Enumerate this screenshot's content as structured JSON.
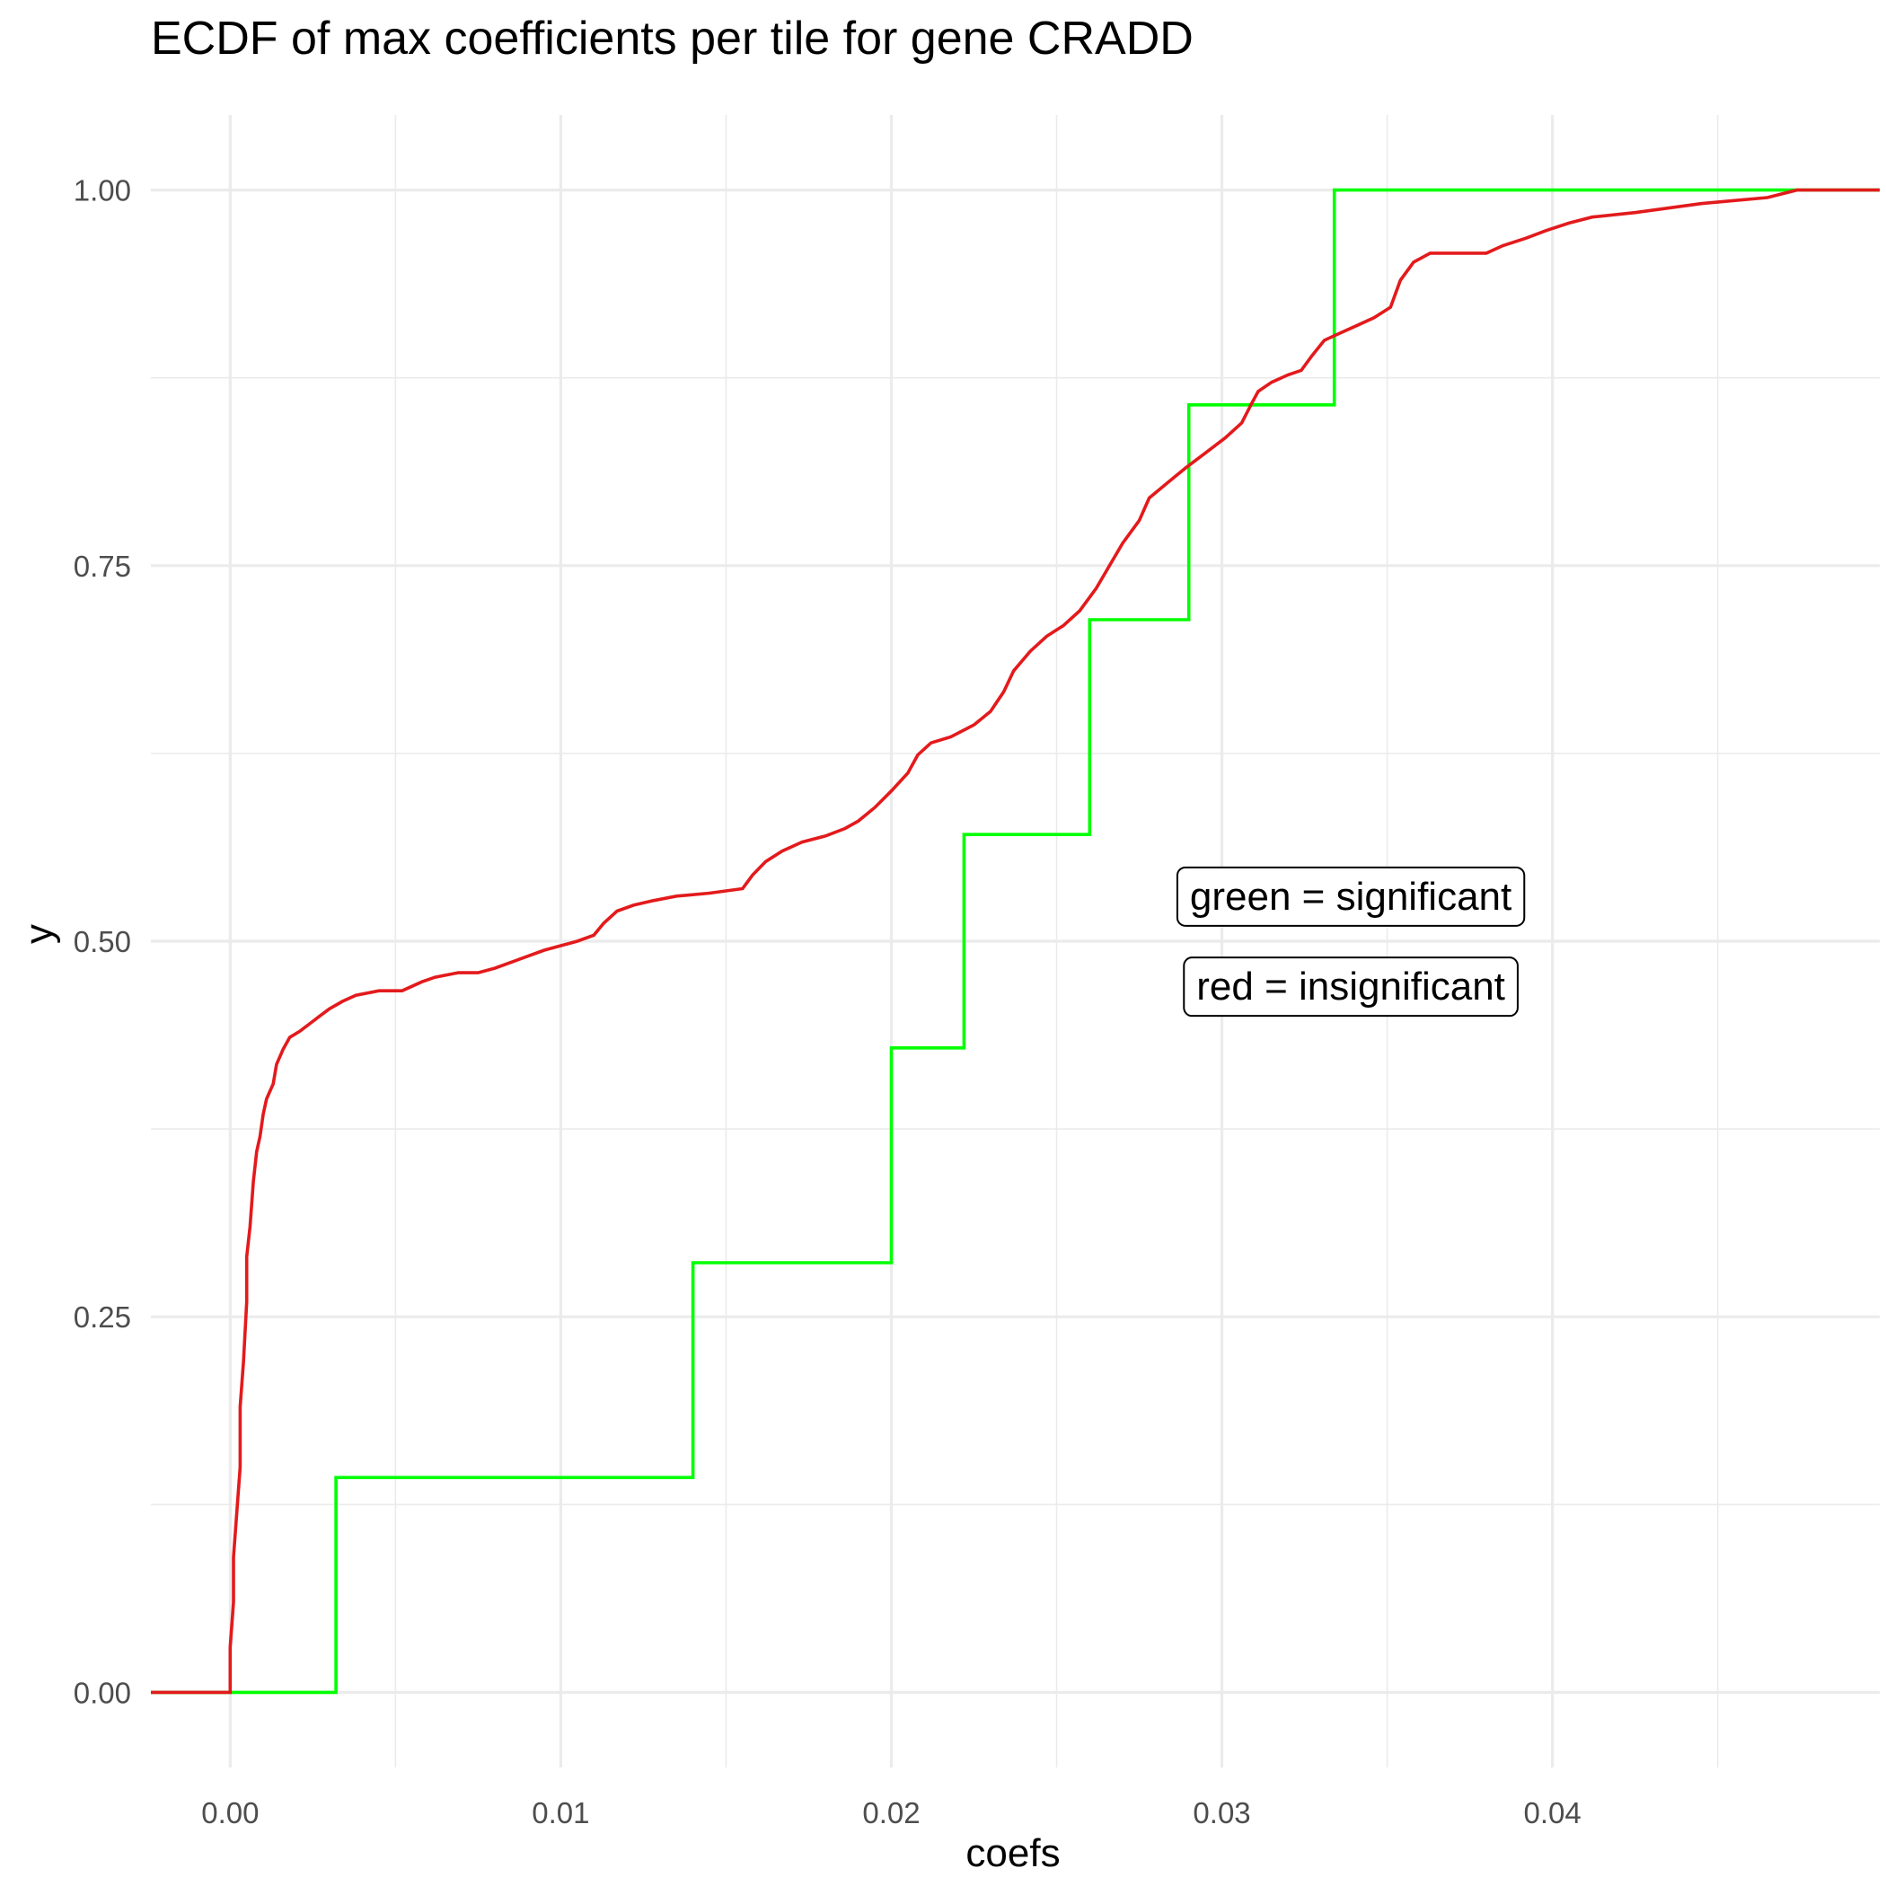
{
  "chart_data": {
    "type": "line",
    "subtype": "ecdf-step",
    "title": "ECDF of max coefficients per tile for gene CRADD",
    "xlabel": "coefs",
    "ylabel": "y",
    "xlim": [
      -0.0024,
      0.0499
    ],
    "ylim": [
      -0.05,
      1.05
    ],
    "x_ticks": [
      0.0,
      0.01,
      0.02,
      0.03,
      0.04
    ],
    "x_tick_labels": [
      "0.00",
      "0.01",
      "0.02",
      "0.03",
      "0.04"
    ],
    "y_ticks": [
      0.0,
      0.25,
      0.5,
      0.75,
      1.0
    ],
    "y_tick_labels": [
      "0.00",
      "0.25",
      "0.50",
      "0.75",
      "1.00"
    ],
    "grid": true,
    "annotations": [
      {
        "text": "green = significant",
        "x": 0.0339,
        "y": 0.53
      },
      {
        "text": "red = insignificant",
        "x": 0.0339,
        "y": 0.47
      }
    ],
    "series": [
      {
        "color": "#00ff00",
        "points": [
          [
            -0.0024,
            0.0
          ],
          [
            0.0032,
            0.0
          ],
          [
            0.0032,
            0.143
          ],
          [
            0.014,
            0.143
          ],
          [
            0.014,
            0.286
          ],
          [
            0.02,
            0.286
          ],
          [
            0.02,
            0.429
          ],
          [
            0.0222,
            0.429
          ],
          [
            0.0222,
            0.571
          ],
          [
            0.026,
            0.571
          ],
          [
            0.026,
            0.714
          ],
          [
            0.029,
            0.714
          ],
          [
            0.029,
            0.857
          ],
          [
            0.0334,
            0.857
          ],
          [
            0.0334,
            1.0
          ],
          [
            0.0499,
            1.0
          ]
        ]
      },
      {
        "color": "#e31a1c",
        "points": [
          [
            -0.0024,
            0.0
          ],
          [
            0.0,
            0.0
          ],
          [
            0.0,
            0.03
          ],
          [
            0.0001,
            0.06
          ],
          [
            0.0001,
            0.09
          ],
          [
            0.0002,
            0.12
          ],
          [
            0.0003,
            0.15
          ],
          [
            0.0003,
            0.19
          ],
          [
            0.0004,
            0.22
          ],
          [
            0.0005,
            0.26
          ],
          [
            0.0005,
            0.29
          ],
          [
            0.0006,
            0.31
          ],
          [
            0.0007,
            0.34
          ],
          [
            0.0008,
            0.36
          ],
          [
            0.0009,
            0.37
          ],
          [
            0.001,
            0.385
          ],
          [
            0.0011,
            0.395
          ],
          [
            0.0013,
            0.405
          ],
          [
            0.0014,
            0.418
          ],
          [
            0.0016,
            0.428
          ],
          [
            0.0018,
            0.436
          ],
          [
            0.0021,
            0.44
          ],
          [
            0.0024,
            0.445
          ],
          [
            0.0027,
            0.45
          ],
          [
            0.003,
            0.455
          ],
          [
            0.0034,
            0.46
          ],
          [
            0.0038,
            0.464
          ],
          [
            0.0045,
            0.467
          ],
          [
            0.0052,
            0.467
          ],
          [
            0.0055,
            0.47
          ],
          [
            0.0058,
            0.473
          ],
          [
            0.0062,
            0.476
          ],
          [
            0.0069,
            0.479
          ],
          [
            0.0075,
            0.479
          ],
          [
            0.008,
            0.482
          ],
          [
            0.0085,
            0.486
          ],
          [
            0.009,
            0.49
          ],
          [
            0.0095,
            0.494
          ],
          [
            0.01,
            0.497
          ],
          [
            0.0105,
            0.5
          ],
          [
            0.011,
            0.504
          ],
          [
            0.0113,
            0.512
          ],
          [
            0.0117,
            0.52
          ],
          [
            0.0122,
            0.524
          ],
          [
            0.0128,
            0.527
          ],
          [
            0.0135,
            0.53
          ],
          [
            0.0145,
            0.532
          ],
          [
            0.0155,
            0.535
          ],
          [
            0.0158,
            0.544
          ],
          [
            0.0162,
            0.553
          ],
          [
            0.0167,
            0.56
          ],
          [
            0.0173,
            0.566
          ],
          [
            0.018,
            0.57
          ],
          [
            0.0186,
            0.575
          ],
          [
            0.019,
            0.58
          ],
          [
            0.0195,
            0.589
          ],
          [
            0.02,
            0.6
          ],
          [
            0.0205,
            0.612
          ],
          [
            0.0208,
            0.624
          ],
          [
            0.0212,
            0.632
          ],
          [
            0.0218,
            0.636
          ],
          [
            0.0225,
            0.644
          ],
          [
            0.023,
            0.653
          ],
          [
            0.0234,
            0.666
          ],
          [
            0.0237,
            0.68
          ],
          [
            0.0242,
            0.693
          ],
          [
            0.0247,
            0.703
          ],
          [
            0.0252,
            0.71
          ],
          [
            0.0257,
            0.72
          ],
          [
            0.0262,
            0.735
          ],
          [
            0.0266,
            0.75
          ],
          [
            0.027,
            0.765
          ],
          [
            0.0275,
            0.78
          ],
          [
            0.0278,
            0.795
          ],
          [
            0.0284,
            0.806
          ],
          [
            0.0289,
            0.815
          ],
          [
            0.0295,
            0.825
          ],
          [
            0.0301,
            0.835
          ],
          [
            0.0306,
            0.845
          ],
          [
            0.0309,
            0.858
          ],
          [
            0.0311,
            0.866
          ],
          [
            0.0315,
            0.872
          ],
          [
            0.032,
            0.877
          ],
          [
            0.0324,
            0.88
          ],
          [
            0.0327,
            0.889
          ],
          [
            0.0331,
            0.9
          ],
          [
            0.0336,
            0.905
          ],
          [
            0.0341,
            0.91
          ],
          [
            0.0346,
            0.915
          ],
          [
            0.0351,
            0.922
          ],
          [
            0.0354,
            0.94
          ],
          [
            0.0358,
            0.952
          ],
          [
            0.0363,
            0.958
          ],
          [
            0.038,
            0.958
          ],
          [
            0.0385,
            0.963
          ],
          [
            0.0392,
            0.968
          ],
          [
            0.0398,
            0.973
          ],
          [
            0.0405,
            0.978
          ],
          [
            0.0412,
            0.982
          ],
          [
            0.0425,
            0.985
          ],
          [
            0.0435,
            0.988
          ],
          [
            0.0445,
            0.991
          ],
          [
            0.0455,
            0.993
          ],
          [
            0.0465,
            0.995
          ],
          [
            0.0474,
            1.0
          ],
          [
            0.0499,
            1.0
          ]
        ]
      }
    ]
  }
}
